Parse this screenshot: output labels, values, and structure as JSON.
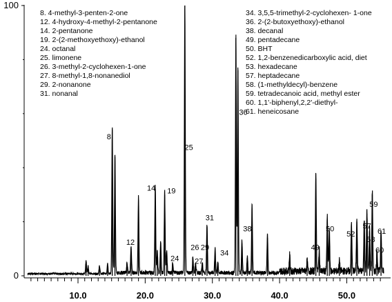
{
  "chart_data": {
    "type": "line",
    "title": "",
    "xlabel": "",
    "ylabel": "",
    "xlim": [
      2.5,
      55.5
    ],
    "ylim": [
      0,
      100
    ],
    "x_ticks": [
      "10.0",
      "20.0",
      "30.0",
      "40.0",
      "50.0"
    ],
    "x_tick_values": [
      10,
      20,
      30,
      40,
      50
    ],
    "y_ticks": [
      "0",
      "100"
    ],
    "y_tick_values": [
      0,
      100
    ],
    "colors": {
      "trace": "#000000",
      "axis": "#000000",
      "background": "#ffffff"
    },
    "peaks": [
      {
        "x": 11.2,
        "y": 5
      },
      {
        "x": 11.5,
        "y": 3
      },
      {
        "x": 13.2,
        "y": 3
      },
      {
        "x": 14.4,
        "y": 4
      },
      {
        "x": 15.1,
        "y": 54
      },
      {
        "x": 15.5,
        "y": 44
      },
      {
        "x": 17.3,
        "y": 4
      },
      {
        "x": 17.9,
        "y": 10
      },
      {
        "x": 19.0,
        "y": 28
      },
      {
        "x": 21.5,
        "y": 32
      },
      {
        "x": 21.8,
        "y": 8
      },
      {
        "x": 22.3,
        "y": 12
      },
      {
        "x": 22.9,
        "y": 30
      },
      {
        "x": 23.2,
        "y": 8
      },
      {
        "x": 24.1,
        "y": 4
      },
      {
        "x": 25.9,
        "y": 100
      },
      {
        "x": 27.1,
        "y": 6
      },
      {
        "x": 27.5,
        "y": 4
      },
      {
        "x": 28.5,
        "y": 4
      },
      {
        "x": 29.2,
        "y": 18
      },
      {
        "x": 30.4,
        "y": 9
      },
      {
        "x": 30.8,
        "y": 4
      },
      {
        "x": 33.5,
        "y": 88
      },
      {
        "x": 33.8,
        "y": 76
      },
      {
        "x": 34.4,
        "y": 12
      },
      {
        "x": 35.2,
        "y": 6
      },
      {
        "x": 35.9,
        "y": 25
      },
      {
        "x": 38.2,
        "y": 14
      },
      {
        "x": 41.5,
        "y": 6
      },
      {
        "x": 44.1,
        "y": 4
      },
      {
        "x": 45.4,
        "y": 36
      },
      {
        "x": 45.9,
        "y": 8
      },
      {
        "x": 47.1,
        "y": 20
      },
      {
        "x": 47.4,
        "y": 16
      },
      {
        "x": 48.9,
        "y": 4
      },
      {
        "x": 50.7,
        "y": 18
      },
      {
        "x": 51.5,
        "y": 20
      },
      {
        "x": 52.6,
        "y": 20
      },
      {
        "x": 53.0,
        "y": 23
      },
      {
        "x": 53.4,
        "y": 16
      },
      {
        "x": 53.8,
        "y": 30
      },
      {
        "x": 54.5,
        "y": 8
      },
      {
        "x": 55.1,
        "y": 16
      }
    ],
    "noise_level": 1.5,
    "peak_labels": [
      {
        "text": "8",
        "x": 14.6,
        "y": 50
      },
      {
        "text": "12",
        "x": 17.8,
        "y": 11
      },
      {
        "text": "14",
        "x": 20.9,
        "y": 31
      },
      {
        "text": "19",
        "x": 23.9,
        "y": 30
      },
      {
        "text": "24",
        "x": 24.4,
        "y": 5
      },
      {
        "text": "25",
        "x": 26.5,
        "y": 46
      },
      {
        "text": "26",
        "x": 27.4,
        "y": 9
      },
      {
        "text": "27",
        "x": 28.0,
        "y": 4
      },
      {
        "text": "29",
        "x": 28.9,
        "y": 9
      },
      {
        "text": "31",
        "x": 29.6,
        "y": 20
      },
      {
        "text": "34",
        "x": 31.8,
        "y": 7
      },
      {
        "text": "36",
        "x": 34.6,
        "y": 59
      },
      {
        "text": "38",
        "x": 35.2,
        "y": 16
      },
      {
        "text": "49",
        "x": 45.3,
        "y": 9
      },
      {
        "text": "50",
        "x": 47.5,
        "y": 16
      },
      {
        "text": "52",
        "x": 50.6,
        "y": 14
      },
      {
        "text": "57",
        "x": 53.0,
        "y": 17
      },
      {
        "text": "58",
        "x": 53.6,
        "y": 12
      },
      {
        "text": "59",
        "x": 54.0,
        "y": 25
      },
      {
        "text": "61",
        "x": 55.2,
        "y": 15
      },
      {
        "text": "60",
        "x": 54.9,
        "y": 8
      }
    ],
    "legend_left": [
      "8. 4-methyl-3-penten-2-one",
      "12. 4-hydroxy-4-methyl-2-pentanone",
      "14. 2-pentanone",
      "19. 2-(2-methoxyethoxy)-ethanol",
      "24. octanal",
      "25. limonene",
      "26. 3-methyl-2-cyclohexen-1-one",
      "27. 8-methyl-1,8-nonanediol",
      "29. 2-nonanone",
      "31. nonanal"
    ],
    "legend_right": [
      "34. 3,5,5-trimethyl-2-cyclohexen- 1-one",
      "36. 2-(2-butoxyethoxy)-ethanol",
      "38. decanal",
      "49. pentadecane",
      "50. BHT",
      "52. 1,2-benzenedicarboxylic acid, diet",
      "53. hexadecane",
      "57. heptadecane",
      "58. (1-methyldecyl)-benzene",
      "59. tetradecanoic acid, methyl ester",
      "60. 1,1'-biphenyl,2,2'-diethyl-",
      "61. heneicosane"
    ],
    "legend_placement": "top-left"
  }
}
